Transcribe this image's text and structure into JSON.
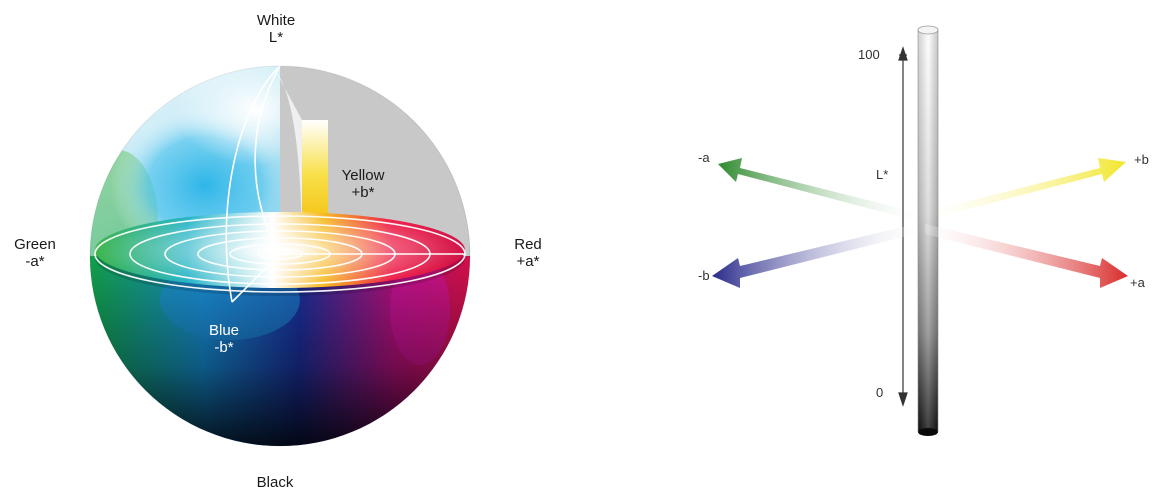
{
  "sphere": {
    "white_label": "White",
    "l_axis_label": "L*",
    "yellow_label": "Yellow",
    "yellow_axis": "+b*",
    "green_label": "Green",
    "green_axis": "-a*",
    "red_label": "Red",
    "red_axis": "+a*",
    "blue_label": "Blue",
    "blue_axis": "-b*",
    "black_label": "Black"
  },
  "axes_diagram": {
    "tick_top": "100",
    "tick_bottom": "0",
    "l_label": "L*",
    "minus_a": "-a",
    "plus_b": "+b",
    "minus_b": "-b",
    "plus_a": "+a"
  },
  "colors": {
    "green": "#2f8a2f",
    "yellow": "#f2e62a",
    "blue": "#2a2a8c",
    "red": "#d92b2b",
    "magenta": "#c8106a"
  }
}
